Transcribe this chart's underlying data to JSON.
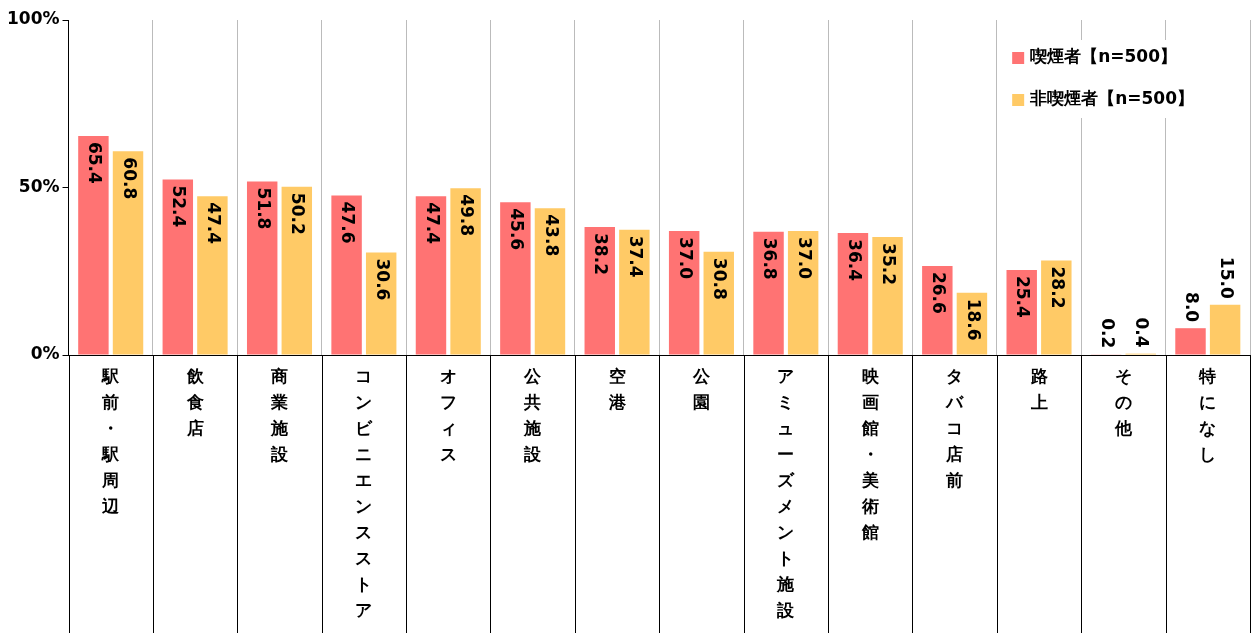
{
  "chart_data": {
    "type": "bar",
    "categories": [
      "駅前・駅周辺",
      "飲食店",
      "商業施設",
      "コンビニエンスストア",
      "オフィス",
      "公共施設",
      "空港",
      "公園",
      "アミューズメント施設",
      "映画館・美術館",
      "タバコ店前",
      "路上",
      "その他",
      "特になし"
    ],
    "series": [
      {
        "name": "喫煙者【n=500】",
        "color": "#ff7373",
        "values": [
          65.4,
          52.4,
          51.8,
          47.6,
          47.4,
          45.6,
          38.2,
          37.0,
          36.8,
          36.4,
          26.6,
          25.4,
          0.2,
          8.0
        ],
        "value_labels": [
          "65.4",
          "52.4",
          "51.8",
          "47.6",
          "47.4",
          "45.6",
          "38.2",
          "37.0",
          "36.8",
          "36.4",
          "26.6",
          "25.4",
          "0.2",
          "8.0"
        ]
      },
      {
        "name": "非喫煙者【n=500】",
        "color": "#ffca66",
        "values": [
          60.8,
          47.4,
          50.2,
          30.6,
          49.8,
          43.8,
          37.4,
          30.8,
          37.0,
          35.2,
          18.6,
          28.2,
          0.4,
          15.0
        ],
        "value_labels": [
          "60.8",
          "47.4",
          "50.2",
          "30.6",
          "49.8",
          "43.8",
          "37.4",
          "30.8",
          "37.0",
          "35.2",
          "18.6",
          "28.2",
          "0.4",
          "15.0"
        ]
      }
    ],
    "ylim": [
      0,
      100
    ],
    "yticks": [
      {
        "value": 0,
        "label": "0%"
      },
      {
        "value": 50,
        "label": "50%"
      },
      {
        "value": 100,
        "label": "100%"
      }
    ],
    "grid": "x",
    "legend": "top right"
  }
}
